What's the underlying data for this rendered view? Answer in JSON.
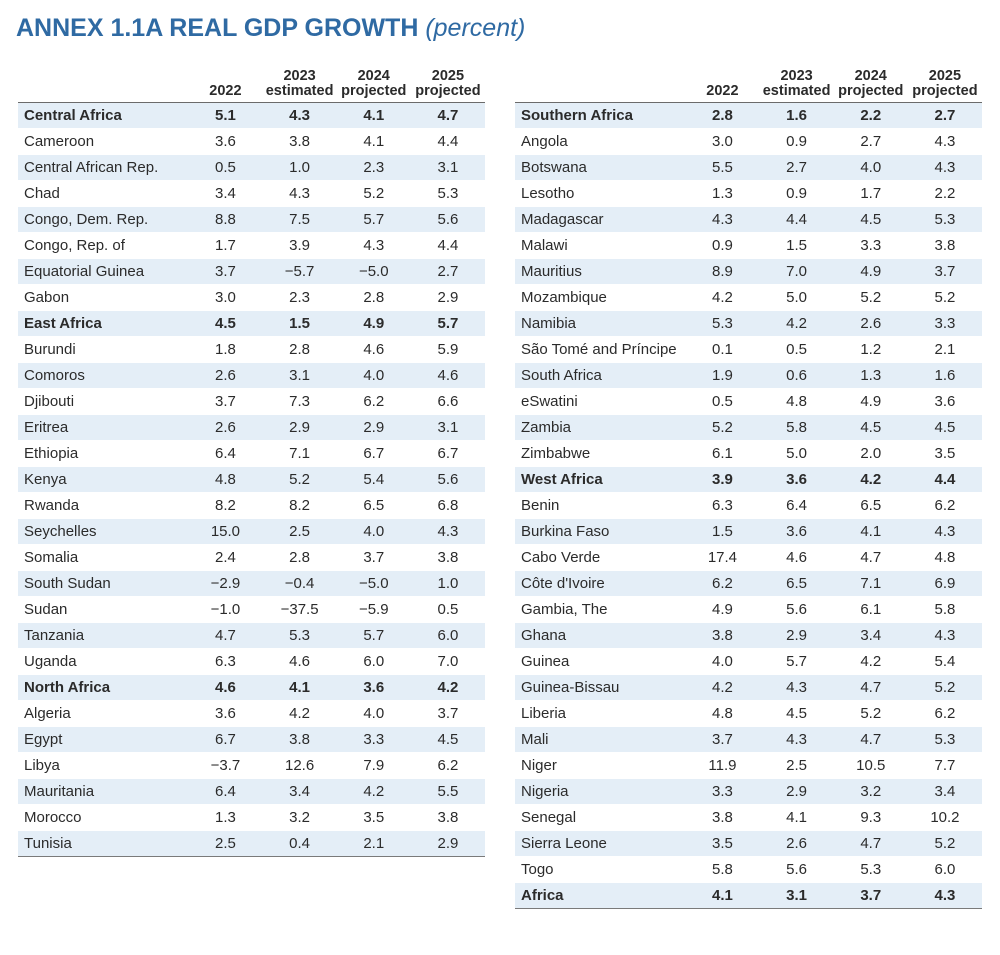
{
  "title": {
    "main": "ANNEX 1.1A REAL GDP GROWTH",
    "sub": "(percent)"
  },
  "headers": {
    "y2022": "2022",
    "y2023": "2023",
    "y2023_sub": "estimated",
    "y2024": "2024",
    "y2024_sub": "projected",
    "y2025": "2025",
    "y2025_sub": "projected"
  },
  "left_rows": [
    {
      "name": "Central Africa",
      "v": [
        "5.1",
        "4.3",
        "4.1",
        "4.7"
      ],
      "region": true
    },
    {
      "name": "Cameroon",
      "v": [
        "3.6",
        "3.8",
        "4.1",
        "4.4"
      ]
    },
    {
      "name": "Central African Rep.",
      "v": [
        "0.5",
        "1.0",
        "2.3",
        "3.1"
      ]
    },
    {
      "name": "Chad",
      "v": [
        "3.4",
        "4.3",
        "5.2",
        "5.3"
      ]
    },
    {
      "name": "Congo, Dem. Rep.",
      "v": [
        "8.8",
        "7.5",
        "5.7",
        "5.6"
      ]
    },
    {
      "name": "Congo, Rep. of",
      "v": [
        "1.7",
        "3.9",
        "4.3",
        "4.4"
      ]
    },
    {
      "name": "Equatorial Guinea",
      "v": [
        "3.7",
        "−5.7",
        "−5.0",
        "2.7"
      ]
    },
    {
      "name": "Gabon",
      "v": [
        "3.0",
        "2.3",
        "2.8",
        "2.9"
      ]
    },
    {
      "name": "East Africa",
      "v": [
        "4.5",
        "1.5",
        "4.9",
        "5.7"
      ],
      "region": true
    },
    {
      "name": "Burundi",
      "v": [
        "1.8",
        "2.8",
        "4.6",
        "5.9"
      ]
    },
    {
      "name": "Comoros",
      "v": [
        "2.6",
        "3.1",
        "4.0",
        "4.6"
      ]
    },
    {
      "name": "Djibouti",
      "v": [
        "3.7",
        "7.3",
        "6.2",
        "6.6"
      ]
    },
    {
      "name": "Eritrea",
      "v": [
        "2.6",
        "2.9",
        "2.9",
        "3.1"
      ]
    },
    {
      "name": "Ethiopia",
      "v": [
        "6.4",
        "7.1",
        "6.7",
        "6.7"
      ]
    },
    {
      "name": "Kenya",
      "v": [
        "4.8",
        "5.2",
        "5.4",
        "5.6"
      ]
    },
    {
      "name": "Rwanda",
      "v": [
        "8.2",
        "8.2",
        "6.5",
        "6.8"
      ]
    },
    {
      "name": "Seychelles",
      "v": [
        "15.0",
        "2.5",
        "4.0",
        "4.3"
      ]
    },
    {
      "name": "Somalia",
      "v": [
        "2.4",
        "2.8",
        "3.7",
        "3.8"
      ]
    },
    {
      "name": "South Sudan",
      "v": [
        "−2.9",
        "−0.4",
        "−5.0",
        "1.0"
      ]
    },
    {
      "name": "Sudan",
      "v": [
        "−1.0",
        "−37.5",
        "−5.9",
        "0.5"
      ]
    },
    {
      "name": "Tanzania",
      "v": [
        "4.7",
        "5.3",
        "5.7",
        "6.0"
      ]
    },
    {
      "name": "Uganda",
      "v": [
        "6.3",
        "4.6",
        "6.0",
        "7.0"
      ]
    },
    {
      "name": "North Africa",
      "v": [
        "4.6",
        "4.1",
        "3.6",
        "4.2"
      ],
      "region": true
    },
    {
      "name": "Algeria",
      "v": [
        "3.6",
        "4.2",
        "4.0",
        "3.7"
      ]
    },
    {
      "name": "Egypt",
      "v": [
        "6.7",
        "3.8",
        "3.3",
        "4.5"
      ]
    },
    {
      "name": "Libya",
      "v": [
        "−3.7",
        "12.6",
        "7.9",
        "6.2"
      ]
    },
    {
      "name": "Mauritania",
      "v": [
        "6.4",
        "3.4",
        "4.2",
        "5.5"
      ]
    },
    {
      "name": "Morocco",
      "v": [
        "1.3",
        "3.2",
        "3.5",
        "3.8"
      ]
    },
    {
      "name": "Tunisia",
      "v": [
        "2.5",
        "0.4",
        "2.1",
        "2.9"
      ]
    }
  ],
  "right_rows": [
    {
      "name": "Southern Africa",
      "v": [
        "2.8",
        "1.6",
        "2.2",
        "2.7"
      ],
      "region": true
    },
    {
      "name": "Angola",
      "v": [
        "3.0",
        "0.9",
        "2.7",
        "4.3"
      ]
    },
    {
      "name": "Botswana",
      "v": [
        "5.5",
        "2.7",
        "4.0",
        "4.3"
      ]
    },
    {
      "name": "Lesotho",
      "v": [
        "1.3",
        "0.9",
        "1.7",
        "2.2"
      ]
    },
    {
      "name": "Madagascar",
      "v": [
        "4.3",
        "4.4",
        "4.5",
        "5.3"
      ]
    },
    {
      "name": "Malawi",
      "v": [
        "0.9",
        "1.5",
        "3.3",
        "3.8"
      ]
    },
    {
      "name": "Mauritius",
      "v": [
        "8.9",
        "7.0",
        "4.9",
        "3.7"
      ]
    },
    {
      "name": "Mozambique",
      "v": [
        "4.2",
        "5.0",
        "5.2",
        "5.2"
      ]
    },
    {
      "name": "Namibia",
      "v": [
        "5.3",
        "4.2",
        "2.6",
        "3.3"
      ]
    },
    {
      "name": "São Tomé and Príncipe",
      "v": [
        "0.1",
        "0.5",
        "1.2",
        "2.1"
      ]
    },
    {
      "name": "South Africa",
      "v": [
        "1.9",
        "0.6",
        "1.3",
        "1.6"
      ]
    },
    {
      "name": "eSwatini",
      "v": [
        "0.5",
        "4.8",
        "4.9",
        "3.6"
      ]
    },
    {
      "name": "Zambia",
      "v": [
        "5.2",
        "5.8",
        "4.5",
        "4.5"
      ]
    },
    {
      "name": "Zimbabwe",
      "v": [
        "6.1",
        "5.0",
        "2.0",
        "3.5"
      ]
    },
    {
      "name": "West Africa",
      "v": [
        "3.9",
        "3.6",
        "4.2",
        "4.4"
      ],
      "region": true
    },
    {
      "name": "Benin",
      "v": [
        "6.3",
        "6.4",
        "6.5",
        "6.2"
      ]
    },
    {
      "name": "Burkina Faso",
      "v": [
        "1.5",
        "3.6",
        "4.1",
        "4.3"
      ]
    },
    {
      "name": "Cabo Verde",
      "v": [
        "17.4",
        "4.6",
        "4.7",
        "4.8"
      ]
    },
    {
      "name": "Côte d'Ivoire",
      "v": [
        "6.2",
        "6.5",
        "7.1",
        "6.9"
      ]
    },
    {
      "name": "Gambia, The",
      "v": [
        "4.9",
        "5.6",
        "6.1",
        "5.8"
      ]
    },
    {
      "name": "Ghana",
      "v": [
        "3.8",
        "2.9",
        "3.4",
        "4.3"
      ]
    },
    {
      "name": "Guinea",
      "v": [
        "4.0",
        "5.7",
        "4.2",
        "5.4"
      ]
    },
    {
      "name": "Guinea-Bissau",
      "v": [
        "4.2",
        "4.3",
        "4.7",
        "5.2"
      ]
    },
    {
      "name": "Liberia",
      "v": [
        "4.8",
        "4.5",
        "5.2",
        "6.2"
      ]
    },
    {
      "name": "Mali",
      "v": [
        "3.7",
        "4.3",
        "4.7",
        "5.3"
      ]
    },
    {
      "name": "Niger",
      "v": [
        "11.9",
        "2.5",
        "10.5",
        "7.7"
      ]
    },
    {
      "name": "Nigeria",
      "v": [
        "3.3",
        "2.9",
        "3.2",
        "3.4"
      ]
    },
    {
      "name": "Senegal",
      "v": [
        "3.8",
        "4.1",
        "9.3",
        "10.2"
      ]
    },
    {
      "name": "Sierra Leone",
      "v": [
        "3.5",
        "2.6",
        "4.7",
        "5.2"
      ]
    },
    {
      "name": "Togo",
      "v": [
        "5.8",
        "5.6",
        "5.3",
        "6.0"
      ]
    },
    {
      "name": "Africa",
      "v": [
        "4.1",
        "3.1",
        "3.7",
        "4.3"
      ],
      "region": true
    }
  ]
}
